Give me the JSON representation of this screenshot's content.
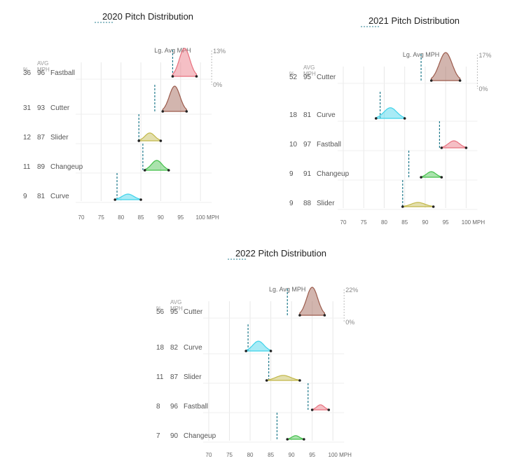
{
  "labels": {
    "pct_header": "%",
    "avg_header_1": "AVG",
    "avg_header_2": "MPH",
    "lg_avg": "Lg. Avg MPH",
    "zero_pct": "0%",
    "x_ticks": [
      "70",
      "75",
      "80",
      "85",
      "90",
      "95",
      "100 MPH"
    ]
  },
  "colors": {
    "Fastball": "#e8707e",
    "Cutter": "#9b5b4c",
    "Slider": "#c2b84a",
    "Changeup": "#43c04a",
    "Curve": "#3fd3ea",
    "league_line": "#1f7a8c",
    "grid": "#e8e8e8",
    "text": "#555555"
  },
  "chart_data": [
    {
      "type": "area",
      "title": "2020 Pitch Distribution",
      "xlim": [
        70,
        100
      ],
      "max_density_label": "13%",
      "pitches": [
        {
          "pct": "36",
          "avg": "96",
          "name": "Fastball",
          "lg_avg": 93.0,
          "range": [
            93.0,
            99.0
          ],
          "peak": 1.0
        },
        {
          "pct": "31",
          "avg": "93",
          "name": "Cutter",
          "lg_avg": 88.5,
          "range": [
            90.5,
            96.5
          ],
          "peak": 0.9
        },
        {
          "pct": "12",
          "avg": "87",
          "name": "Slider",
          "lg_avg": 84.5,
          "range": [
            84.5,
            90.0
          ],
          "peak": 0.28
        },
        {
          "pct": "11",
          "avg": "89",
          "name": "Changeup",
          "lg_avg": 85.5,
          "range": [
            86.0,
            92.0
          ],
          "peak": 0.35
        },
        {
          "pct": "9",
          "avg": "81",
          "name": "Curve",
          "lg_avg": 79.0,
          "range": [
            78.5,
            85.0
          ],
          "peak": 0.2
        }
      ]
    },
    {
      "type": "area",
      "title": "2021 Pitch Distribution",
      "xlim": [
        70,
        100
      ],
      "max_density_label": "17%",
      "pitches": [
        {
          "pct": "52",
          "avg": "95",
          "name": "Cutter",
          "lg_avg": 89.0,
          "range": [
            91.5,
            98.5
          ],
          "peak": 1.0
        },
        {
          "pct": "18",
          "avg": "81",
          "name": "Curve",
          "lg_avg": 79.0,
          "range": [
            78.0,
            85.0
          ],
          "peak": 0.38
        },
        {
          "pct": "10",
          "avg": "97",
          "name": "Fastball",
          "lg_avg": 93.5,
          "range": [
            94.0,
            100.0
          ],
          "peak": 0.25
        },
        {
          "pct": "9",
          "avg": "91",
          "name": "Changeup",
          "lg_avg": 86.0,
          "range": [
            89.0,
            94.0
          ],
          "peak": 0.2
        },
        {
          "pct": "9",
          "avg": "88",
          "name": "Slider",
          "lg_avg": 84.5,
          "range": [
            84.5,
            92.0
          ],
          "peak": 0.15
        }
      ]
    },
    {
      "type": "area",
      "title": "2022 Pitch Distribution",
      "xlim": [
        70,
        100
      ],
      "max_density_label": "22%",
      "pitches": [
        {
          "pct": "56",
          "avg": "95",
          "name": "Cutter",
          "lg_avg": 89.0,
          "range": [
            92.0,
            98.0
          ],
          "peak": 1.0
        },
        {
          "pct": "18",
          "avg": "82",
          "name": "Curve",
          "lg_avg": 79.5,
          "range": [
            79.0,
            85.0
          ],
          "peak": 0.35
        },
        {
          "pct": "11",
          "avg": "87",
          "name": "Slider",
          "lg_avg": 84.5,
          "range": [
            84.0,
            92.0
          ],
          "peak": 0.18
        },
        {
          "pct": "8",
          "avg": "96",
          "name": "Fastball",
          "lg_avg": 94.0,
          "range": [
            95.0,
            99.0
          ],
          "peak": 0.18
        },
        {
          "pct": "7",
          "avg": "90",
          "name": "Changeup",
          "lg_avg": 86.5,
          "range": [
            89.0,
            93.0
          ],
          "peak": 0.13
        }
      ]
    }
  ]
}
